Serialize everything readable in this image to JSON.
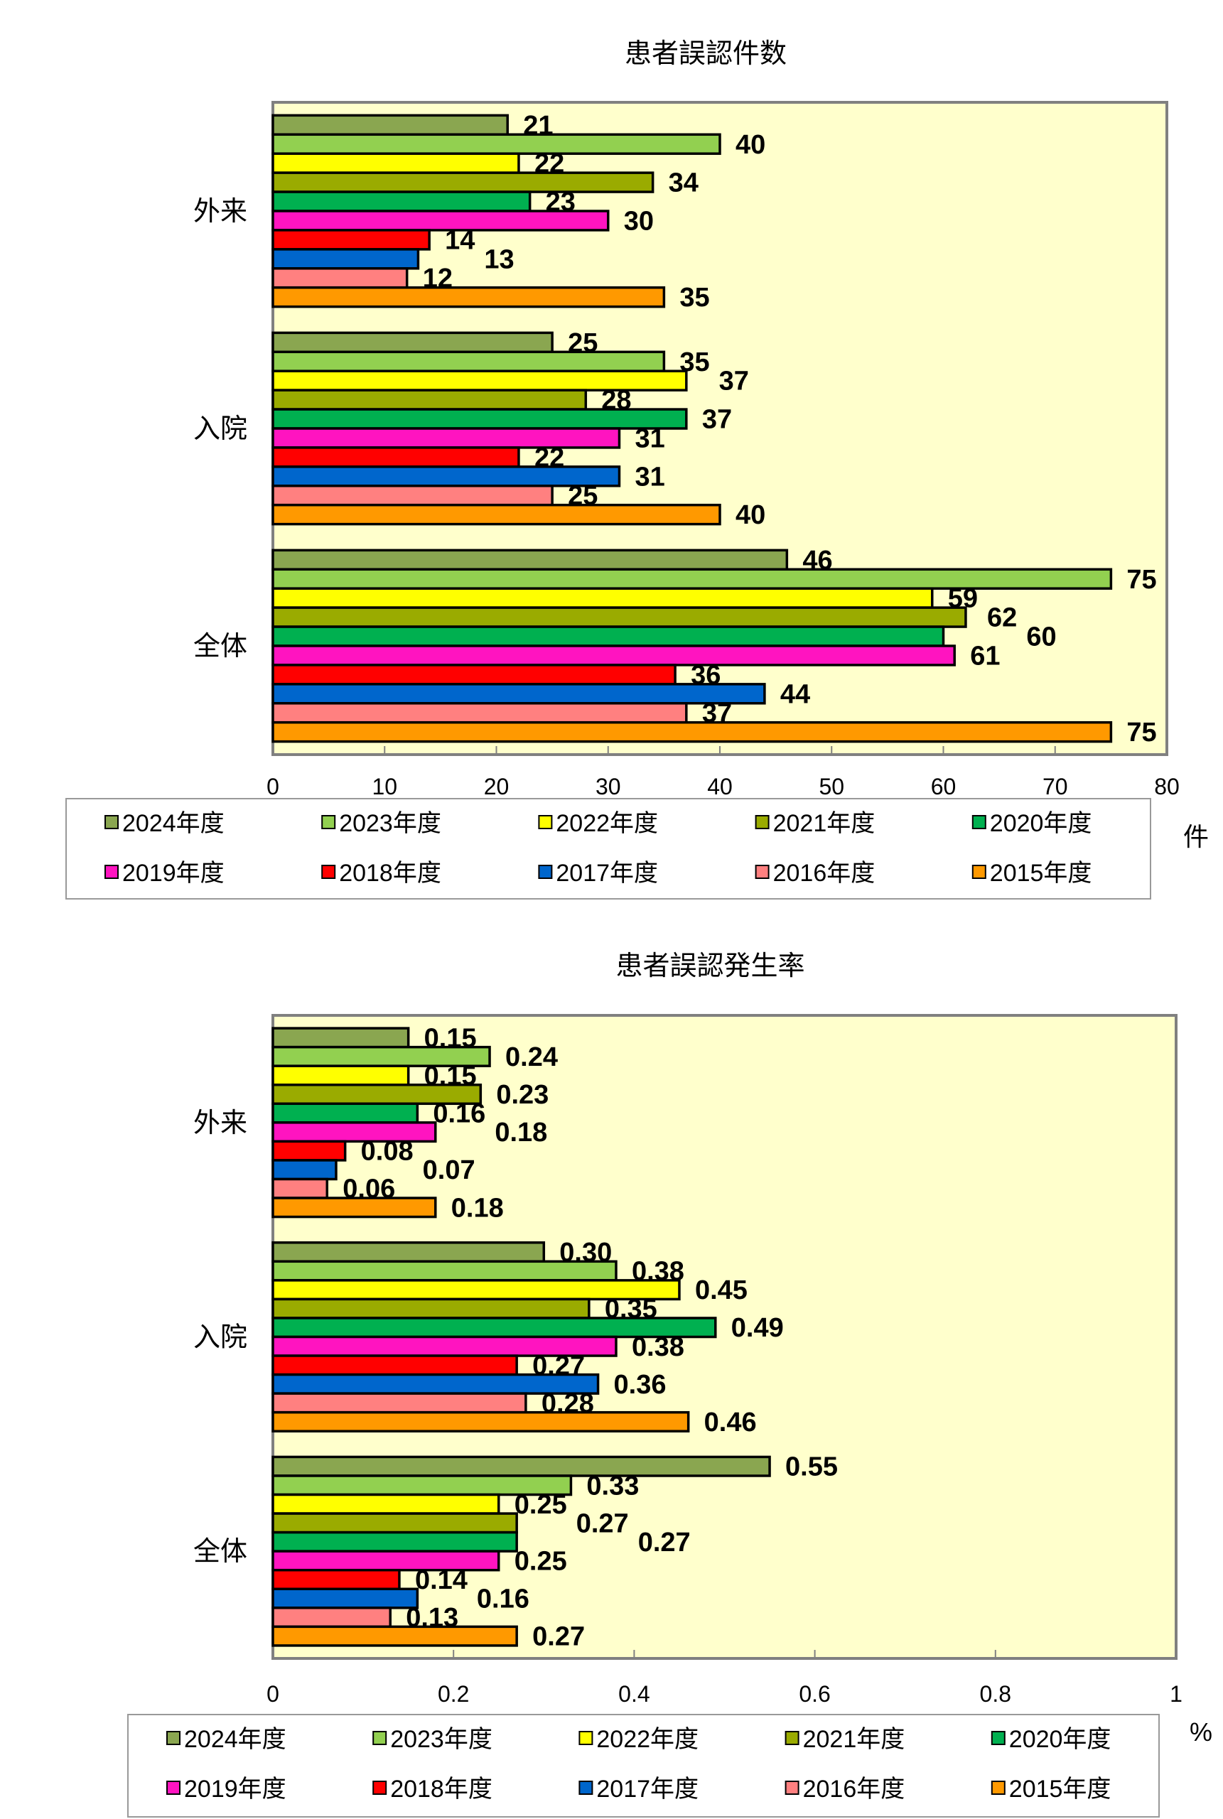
{
  "chart_data": [
    {
      "type": "bar",
      "orientation": "horizontal",
      "title": "患者誤認件数",
      "xlabel": "",
      "unit_label": "件",
      "ylabel": "",
      "xlim": [
        0,
        80
      ],
      "xticks": [
        "0",
        "10",
        "20",
        "30",
        "40",
        "50",
        "60",
        "70",
        "80"
      ],
      "categories": [
        "外来",
        "入院",
        "全体"
      ],
      "legend_position": "bottom",
      "series": [
        {
          "name": "2024年度",
          "color": "#8aa650",
          "values": [
            21,
            25,
            46
          ],
          "labels": [
            "21",
            "25",
            "46"
          ]
        },
        {
          "name": "2023年度",
          "color": "#92d050",
          "values": [
            40,
            35,
            75
          ],
          "labels": [
            "40",
            "35",
            "75"
          ]
        },
        {
          "name": "2022年度",
          "color": "#ffff00",
          "values": [
            22,
            37,
            59
          ],
          "labels": [
            "22",
            "37",
            "59"
          ]
        },
        {
          "name": "2021年度",
          "color": "#9aab00",
          "values": [
            34,
            28,
            62
          ],
          "labels": [
            "34",
            "28",
            "62"
          ]
        },
        {
          "name": "2020年度",
          "color": "#00b050",
          "values": [
            23,
            37,
            60
          ],
          "labels": [
            "23",
            "37",
            "60"
          ]
        },
        {
          "name": "2019年度",
          "color": "#ff14c0",
          "values": [
            30,
            31,
            61
          ],
          "labels": [
            "30",
            "31",
            "61"
          ]
        },
        {
          "name": "2018年度",
          "color": "#ff0000",
          "values": [
            14,
            22,
            36
          ],
          "labels": [
            "14",
            "22",
            "36"
          ]
        },
        {
          "name": "2017年度",
          "color": "#0066cc",
          "values": [
            13,
            31,
            44
          ],
          "labels": [
            "13",
            "31",
            "44"
          ]
        },
        {
          "name": "2016年度",
          "color": "#ff8080",
          "values": [
            12,
            25,
            37
          ],
          "labels": [
            "12",
            "25",
            "37"
          ]
        },
        {
          "name": "2015年度",
          "color": "#ff9900",
          "values": [
            35,
            40,
            75
          ],
          "labels": [
            "35",
            "40",
            "75"
          ]
        }
      ]
    },
    {
      "type": "bar",
      "orientation": "horizontal",
      "title": "患者誤認発生率",
      "xlabel": "",
      "unit_label": "%",
      "ylabel": "",
      "xlim": [
        0,
        1
      ],
      "xticks": [
        "0",
        "0.2",
        "0.4",
        "0.6",
        "0.8",
        "1"
      ],
      "categories": [
        "外来",
        "入院",
        "全体"
      ],
      "legend_position": "bottom",
      "series": [
        {
          "name": "2024年度",
          "color": "#8aa650",
          "values": [
            0.15,
            0.3,
            0.55
          ],
          "labels": [
            "0.15",
            "0.30",
            "0.55"
          ]
        },
        {
          "name": "2023年度",
          "color": "#92d050",
          "values": [
            0.24,
            0.38,
            0.33
          ],
          "labels": [
            "0.24",
            "0.38",
            "0.33"
          ]
        },
        {
          "name": "2022年度",
          "color": "#ffff00",
          "values": [
            0.15,
            0.45,
            0.25
          ],
          "labels": [
            "0.15",
            "0.45",
            "0.25"
          ]
        },
        {
          "name": "2021年度",
          "color": "#9aab00",
          "values": [
            0.23,
            0.35,
            0.27
          ],
          "labels": [
            "0.23",
            "0.35",
            "0.27"
          ]
        },
        {
          "name": "2020年度",
          "color": "#00b050",
          "values": [
            0.16,
            0.49,
            0.27
          ],
          "labels": [
            "0.16",
            "0.49",
            "0.27"
          ]
        },
        {
          "name": "2019年度",
          "color": "#ff14c0",
          "values": [
            0.18,
            0.38,
            0.25
          ],
          "labels": [
            "0.18",
            "0.38",
            "0.25"
          ]
        },
        {
          "name": "2018年度",
          "color": "#ff0000",
          "values": [
            0.08,
            0.27,
            0.14
          ],
          "labels": [
            "0.08",
            "0.27",
            "0.14"
          ]
        },
        {
          "name": "2017年度",
          "color": "#0066cc",
          "values": [
            0.07,
            0.36,
            0.16
          ],
          "labels": [
            "0.07",
            "0.36",
            "0.16"
          ]
        },
        {
          "name": "2016年度",
          "color": "#ff8080",
          "values": [
            0.06,
            0.28,
            0.13
          ],
          "labels": [
            "0.06",
            "0.28",
            "0.13"
          ]
        },
        {
          "name": "2015年度",
          "color": "#ff9900",
          "values": [
            0.18,
            0.46,
            0.27
          ],
          "labels": [
            "0.18",
            "0.46",
            "0.27"
          ]
        }
      ]
    }
  ]
}
